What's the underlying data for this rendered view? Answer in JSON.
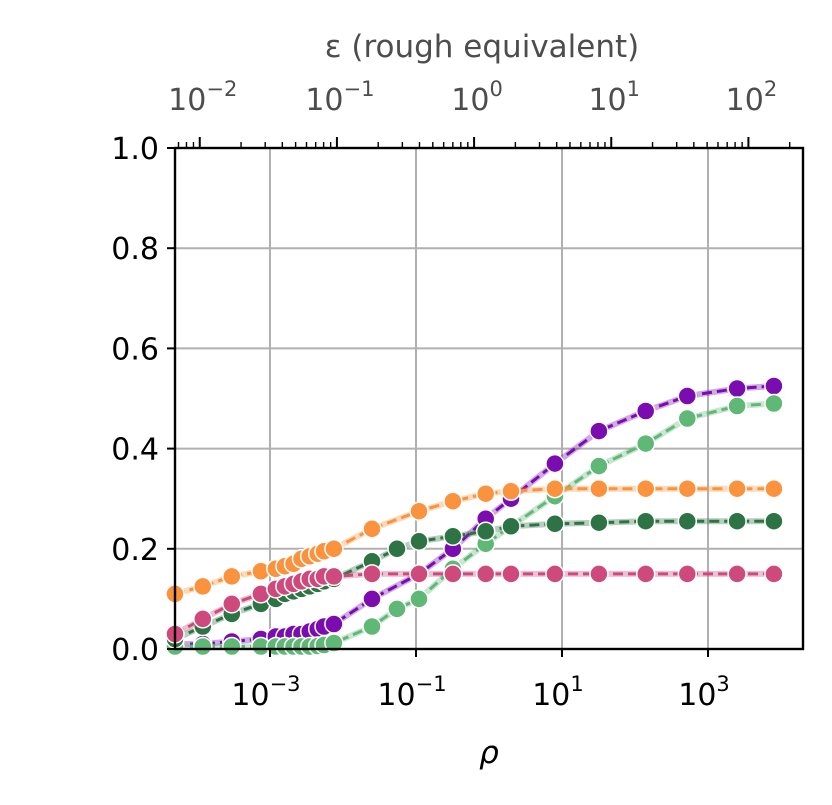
{
  "chart_data": {
    "type": "line",
    "xscale": "log",
    "xlabel": "ρ",
    "xlim": [
      5e-05,
      20000
    ],
    "xticks": [
      {
        "value": 0.001,
        "base": "10",
        "exp": "−3"
      },
      {
        "value": 0.1,
        "base": "10",
        "exp": "−1"
      },
      {
        "value": 10,
        "base": "10",
        "exp": "1"
      },
      {
        "value": 1000,
        "base": "10",
        "exp": "3"
      }
    ],
    "ylim": [
      0,
      1
    ],
    "yticks": [
      "0.0",
      "0.2",
      "0.4",
      "0.6",
      "0.8",
      "1.0"
    ],
    "grid": true,
    "top_axis": {
      "xlabel": "ε (rough equivalent)",
      "xscale": "log",
      "xticks": [
        {
          "value": 0.01,
          "base": "10",
          "exp": "−2"
        },
        {
          "value": 0.1,
          "base": "10",
          "exp": "−1"
        },
        {
          "value": 1,
          "base": "10",
          "exp": "0"
        },
        {
          "value": 10,
          "base": "10",
          "exp": "1"
        },
        {
          "value": 100,
          "base": "10",
          "exp": "2"
        }
      ],
      "xlim": [
        0.0066,
        250
      ]
    },
    "series": [
      {
        "color": "#7a0cb0",
        "x": [
          5e-05,
          0.00012,
          0.0003,
          0.00075,
          0.0012,
          0.0016,
          0.0021,
          0.0027,
          0.0035,
          0.0045,
          0.0055,
          0.0075,
          0.025,
          0.11,
          0.32,
          0.9,
          2.0,
          8.0,
          32,
          140,
          520,
          2500,
          8000
        ],
        "y": [
          0.01,
          0.01,
          0.015,
          0.02,
          0.025,
          0.025,
          0.03,
          0.03,
          0.035,
          0.04,
          0.045,
          0.05,
          0.1,
          0.15,
          0.2,
          0.26,
          0.3,
          0.37,
          0.435,
          0.475,
          0.505,
          0.52,
          0.525
        ]
      },
      {
        "color": "#60b877",
        "x": [
          5e-05,
          0.00012,
          0.0003,
          0.00075,
          0.0012,
          0.0016,
          0.0021,
          0.0027,
          0.0035,
          0.0045,
          0.0055,
          0.0075,
          0.025,
          0.055,
          0.11,
          0.32,
          0.9,
          2.0,
          8.0,
          32,
          140,
          520,
          2500,
          8000
        ],
        "y": [
          0.005,
          0.005,
          0.005,
          0.005,
          0.005,
          0.005,
          0.005,
          0.005,
          0.005,
          0.006,
          0.008,
          0.012,
          0.045,
          0.08,
          0.1,
          0.16,
          0.21,
          0.245,
          0.305,
          0.365,
          0.41,
          0.46,
          0.485,
          0.49
        ]
      },
      {
        "color": "#fb923e",
        "x": [
          5e-05,
          0.00012,
          0.0003,
          0.00075,
          0.0012,
          0.0016,
          0.0021,
          0.0027,
          0.0035,
          0.0045,
          0.0055,
          0.0075,
          0.025,
          0.11,
          0.32,
          0.9,
          2.0,
          8.0,
          32,
          140,
          520,
          2500,
          8000
        ],
        "y": [
          0.11,
          0.125,
          0.145,
          0.155,
          0.16,
          0.165,
          0.17,
          0.18,
          0.185,
          0.19,
          0.195,
          0.2,
          0.24,
          0.275,
          0.295,
          0.31,
          0.315,
          0.32,
          0.32,
          0.32,
          0.32,
          0.32,
          0.32
        ]
      },
      {
        "color": "#2e7343",
        "x": [
          5e-05,
          0.00012,
          0.0003,
          0.00075,
          0.0012,
          0.0016,
          0.0021,
          0.0027,
          0.0035,
          0.0045,
          0.0055,
          0.0075,
          0.025,
          0.055,
          0.11,
          0.32,
          0.9,
          2.0,
          8.0,
          32,
          140,
          520,
          2500,
          8000
        ],
        "y": [
          0.02,
          0.045,
          0.07,
          0.09,
          0.1,
          0.11,
          0.115,
          0.12,
          0.125,
          0.13,
          0.135,
          0.14,
          0.175,
          0.2,
          0.215,
          0.225,
          0.235,
          0.245,
          0.25,
          0.252,
          0.255,
          0.255,
          0.255,
          0.255
        ]
      },
      {
        "color": "#cf4a7c",
        "x": [
          5e-05,
          0.00012,
          0.0003,
          0.00075,
          0.0012,
          0.0016,
          0.0021,
          0.0027,
          0.0035,
          0.0045,
          0.0055,
          0.0075,
          0.025,
          0.11,
          0.32,
          0.9,
          2.0,
          8.0,
          32,
          140,
          520,
          2500,
          8000
        ],
        "y": [
          0.03,
          0.06,
          0.09,
          0.11,
          0.12,
          0.125,
          0.13,
          0.135,
          0.14,
          0.14,
          0.145,
          0.145,
          0.15,
          0.15,
          0.15,
          0.15,
          0.15,
          0.15,
          0.15,
          0.15,
          0.15,
          0.15,
          0.15
        ]
      }
    ]
  }
}
